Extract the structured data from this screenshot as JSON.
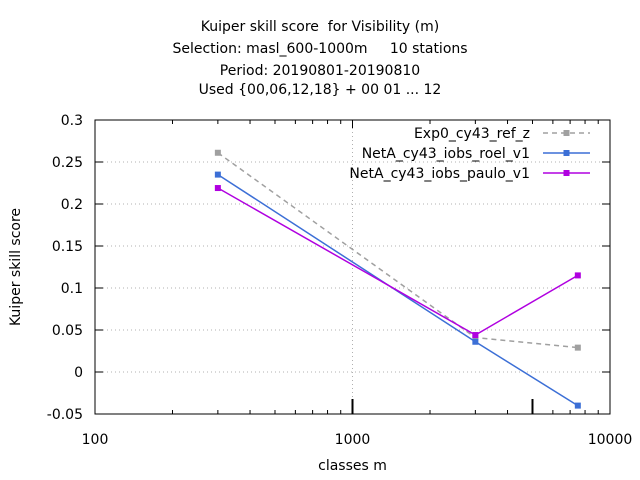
{
  "chart_data": {
    "type": "line",
    "title_lines": [
      "Kuiper skill score  for Visibility (m)",
      "Selection: masl_600-1000m     10 stations",
      "Period: 20190801-20190810",
      "Used {00,06,12,18} + 00 01 ... 12"
    ],
    "xlabel": "classes m",
    "ylabel": "Kuiper skill score",
    "x_scale": "log",
    "xlim": [
      100,
      10000
    ],
    "ylim": [
      -0.05,
      0.3
    ],
    "x_ticks": [
      100,
      1000,
      10000
    ],
    "x_tick_labels": [
      "100",
      "1000",
      "10000"
    ],
    "y_ticks": [
      -0.05,
      0,
      0.05,
      0.1,
      0.15,
      0.2,
      0.25,
      0.3
    ],
    "y_tick_labels": [
      "-0.05",
      "0",
      "0.05",
      "0.1",
      "0.15",
      "0.2",
      "0.25",
      "0.3"
    ],
    "grid": true,
    "legend_position": "top-right",
    "series": [
      {
        "name": "Exp0_cy43_ref_z",
        "color": "#a0a0a0",
        "dashed": true,
        "x": [
          300,
          3000,
          7500
        ],
        "y": [
          0.261,
          0.041,
          0.029
        ]
      },
      {
        "name": "NetA_cy43_iobs_roel_v1",
        "color": "#3c6fd6",
        "dashed": false,
        "x": [
          300,
          3000,
          7500
        ],
        "y": [
          0.235,
          0.036,
          -0.04
        ]
      },
      {
        "name": "NetA_cy43_iobs_paulo_v1",
        "color": "#b000e0",
        "dashed": false,
        "x": [
          300,
          3000,
          7500
        ],
        "y": [
          0.219,
          0.044,
          0.115
        ]
      }
    ],
    "marked_x": [
      1000,
      5000
    ]
  }
}
